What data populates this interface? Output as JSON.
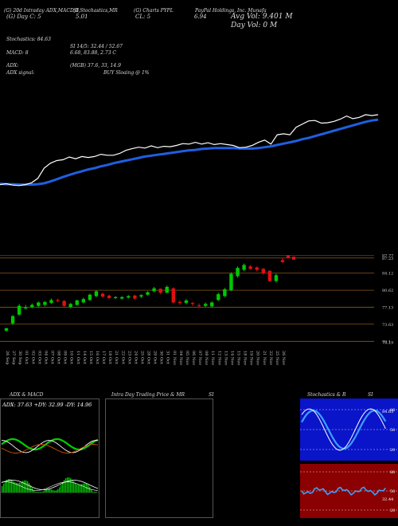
{
  "header": {
    "line1_left": "(G) 20d Intraday ADX,MACD,B",
    "line1_mid": "SI,Stochastics,MR",
    "line1_mid2": "(G) Charts PYPL",
    "line1_right": "PayPal Holdings, Inc. Munafa",
    "line2_a": "(G) Day C: 5",
    "line2_b": "5.01",
    "line2_c": "CL: 5",
    "line2_d": "6.94",
    "avg_vol": "Avg Vol: 9.401 M",
    "day_vol": "Day Vol: 0   M",
    "stochastics": "Stochastics: 84.63",
    "si": "SI 14/5: 32.44 / 52.67",
    "macd_label": "MACD: 8",
    "macd_vals": "6.68, 83.88, 2.73 C",
    "adx_label": "ADX:",
    "adx_vals": "(MGB) 37.6, 33, 14.9",
    "adx_signal_label": "ADX signal:",
    "adx_signal": "BUY Sloaing @ 1%"
  },
  "price_axis": [
    "87.77",
    "87.23",
    "84.12",
    "80.62",
    "77.13",
    "73.63",
    "70.1",
    "70.19"
  ],
  "date_labels": [
    "26 Sep",
    "27 Sep",
    "30 Sep",
    "01 Oct",
    "02 Oct",
    "03 Oct",
    "04 Oct",
    "07 Oct",
    "08 Oct",
    "09 Oct",
    "10 Oct",
    "11 Oct",
    "14 Oct",
    "15 Oct",
    "16 Oct",
    "17 Oct",
    "18 Oct",
    "21 Oct",
    "22 Oct",
    "23 Oct",
    "24 Oct",
    "25 Oct",
    "28 Oct",
    "29 Oct",
    "30 Oct",
    "31 Oct",
    "01 Nov",
    "04 Nov",
    "05 Nov",
    "06 Nov",
    "07 Nov",
    "08 Nov",
    "11 Nov",
    "12 Nov",
    "13 Nov",
    "14 Nov",
    "15 Nov",
    "18 Nov",
    "19 Nov",
    "20 Nov",
    "21 Nov",
    "22 Nov",
    "25 Nov",
    "26 Nov"
  ],
  "panels": {
    "adx_macd_title": "ADX  & MACD",
    "adx_readout": "ADX: 37.63  +DY: 32.99  -DY: 14.96",
    "intraday_title": "Intra Day Trading Price  & MR",
    "si_title": "SI",
    "stoch_title": "Stochastics & R",
    "stoch_si_title": "SI",
    "stoch_levels": [
      "80",
      "50",
      "20"
    ],
    "rsi_levels": [
      "80",
      "50",
      "20"
    ],
    "stoch_value": "84.63",
    "rsi_value": "32.44"
  },
  "colors": {
    "price_line": "#ffffff",
    "ma_line": "#1f5fe0",
    "up_candle": "#00c800",
    "down_candle": "#e01010",
    "grid": "#8a5a1a",
    "stoch_bg": "#0a14c8",
    "rsi_bg": "#8b0000"
  },
  "chart_data": {
    "type": "candlestick",
    "title": "PayPal Holdings, Inc.",
    "x": [
      "26 Sep",
      "27 Sep",
      "30 Sep",
      "01 Oct",
      "02 Oct",
      "03 Oct",
      "04 Oct",
      "07 Oct",
      "08 Oct",
      "09 Oct",
      "10 Oct",
      "11 Oct",
      "14 Oct",
      "15 Oct",
      "16 Oct",
      "17 Oct",
      "18 Oct",
      "21 Oct",
      "22 Oct",
      "23 Oct",
      "24 Oct",
      "25 Oct",
      "28 Oct",
      "29 Oct",
      "30 Oct",
      "31 Oct",
      "01 Nov",
      "04 Nov",
      "05 Nov",
      "06 Nov",
      "07 Nov",
      "08 Nov",
      "11 Nov",
      "12 Nov",
      "13 Nov",
      "14 Nov",
      "15 Nov",
      "18 Nov",
      "19 Nov",
      "20 Nov",
      "21 Nov",
      "22 Nov",
      "25 Nov",
      "26 Nov"
    ],
    "open": [
      72.3,
      73.8,
      75.6,
      77.0,
      77.2,
      77.4,
      77.6,
      78.0,
      78.6,
      78.4,
      77.2,
      77.6,
      78.1,
      78.6,
      79.4,
      79.9,
      79.5,
      79.0,
      78.9,
      79.1,
      79.5,
      79.3,
      79.7,
      80.4,
      80.9,
      80.1,
      81.0,
      78.2,
      78.0,
      78.0,
      77.5,
      77.4,
      77.3,
      78.6,
      79.4,
      80.6,
      83.5,
      84.8,
      85.5,
      85.3,
      85.0,
      84.6,
      82.5,
      86.8
    ],
    "close": [
      72.8,
      75.3,
      77.4,
      77.0,
      77.6,
      78.1,
      78.2,
      78.6,
      78.4,
      77.4,
      77.8,
      78.5,
      78.8,
      79.7,
      80.4,
      79.3,
      79.0,
      79.2,
      79.2,
      79.4,
      78.9,
      79.6,
      80.2,
      81.0,
      80.1,
      81.3,
      78.1,
      78.0,
      78.5,
      77.8,
      77.4,
      77.8,
      78.1,
      79.8,
      80.8,
      84.0,
      85.2,
      85.8,
      85.0,
      84.8,
      84.1,
      82.5,
      83.7,
      86.4
    ],
    "high": [
      72.9,
      75.5,
      77.8,
      77.6,
      77.9,
      78.3,
      78.4,
      78.9,
      78.9,
      78.6,
      78.0,
      78.7,
      79.1,
      79.9,
      80.6,
      80.1,
      79.7,
      79.4,
      79.4,
      79.6,
      79.7,
      79.8,
      80.4,
      81.3,
      81.0,
      81.6,
      81.2,
      78.5,
      78.8,
      78.2,
      77.9,
      78.1,
      78.3,
      80.1,
      81.1,
      84.3,
      85.5,
      86.1,
      85.8,
      85.5,
      85.2,
      84.7,
      84.0,
      87.3
    ],
    "low": [
      72.1,
      73.5,
      75.4,
      76.7,
      76.9,
      77.1,
      77.3,
      77.8,
      78.1,
      77.2,
      76.9,
      77.4,
      77.9,
      78.4,
      79.2,
      79.1,
      78.8,
      78.8,
      78.7,
      78.9,
      78.7,
      79.0,
      79.5,
      80.2,
      79.8,
      80.0,
      77.9,
      77.6,
      77.7,
      77.4,
      77.0,
      77.1,
      77.0,
      78.4,
      79.2,
      80.4,
      83.2,
      84.5,
      84.8,
      84.5,
      83.8,
      82.3,
      82.2,
      86.2
    ],
    "close_last_two": [
      87.5,
      87.2
    ],
    "price_line": [
      70.6,
      70.8,
      70.5,
      70.4,
      70.6,
      71.0,
      72.0,
      74.3,
      75.4,
      76.0,
      76.2,
      76.8,
      76.4,
      76.9,
      76.7,
      76.9,
      77.4,
      77.2,
      77.2,
      77.6,
      78.3,
      78.7,
      79.0,
      78.8,
      79.3,
      78.9,
      79.2,
      79.1,
      79.4,
      79.8,
      79.7,
      80.1,
      79.7,
      80.0,
      79.6,
      79.8,
      79.6,
      79.4,
      78.9,
      79.0,
      79.4,
      80.1,
      80.6,
      79.7,
      81.8,
      82.0,
      81.8,
      83.5,
      84.2,
      84.9,
      85.0,
      84.4,
      84.5,
      84.8,
      85.3,
      86.0,
      85.4,
      85.7,
      86.3,
      86.1,
      86.3
    ],
    "moving_average": [
      70.8,
      70.7,
      70.7,
      70.6,
      70.6,
      70.6,
      70.7,
      70.9,
      71.3,
      71.8,
      72.3,
      72.8,
      73.2,
      73.6,
      74.0,
      74.3,
      74.7,
      75.0,
      75.4,
      75.7,
      76.0,
      76.3,
      76.6,
      76.9,
      77.1,
      77.3,
      77.5,
      77.7,
      77.9,
      78.1,
      78.3,
      78.4,
      78.6,
      78.7,
      78.8,
      78.8,
      78.8,
      78.8,
      78.7,
      78.7,
      78.7,
      78.8,
      79.0,
      79.2,
      79.5,
      79.8,
      80.1,
      80.4,
      80.8,
      81.1,
      81.5,
      81.9,
      82.3,
      82.7,
      83.1,
      83.5,
      83.9,
      84.3,
      84.7,
      85.0,
      85.2
    ],
    "ylim": [
      69.5,
      88.5
    ]
  }
}
